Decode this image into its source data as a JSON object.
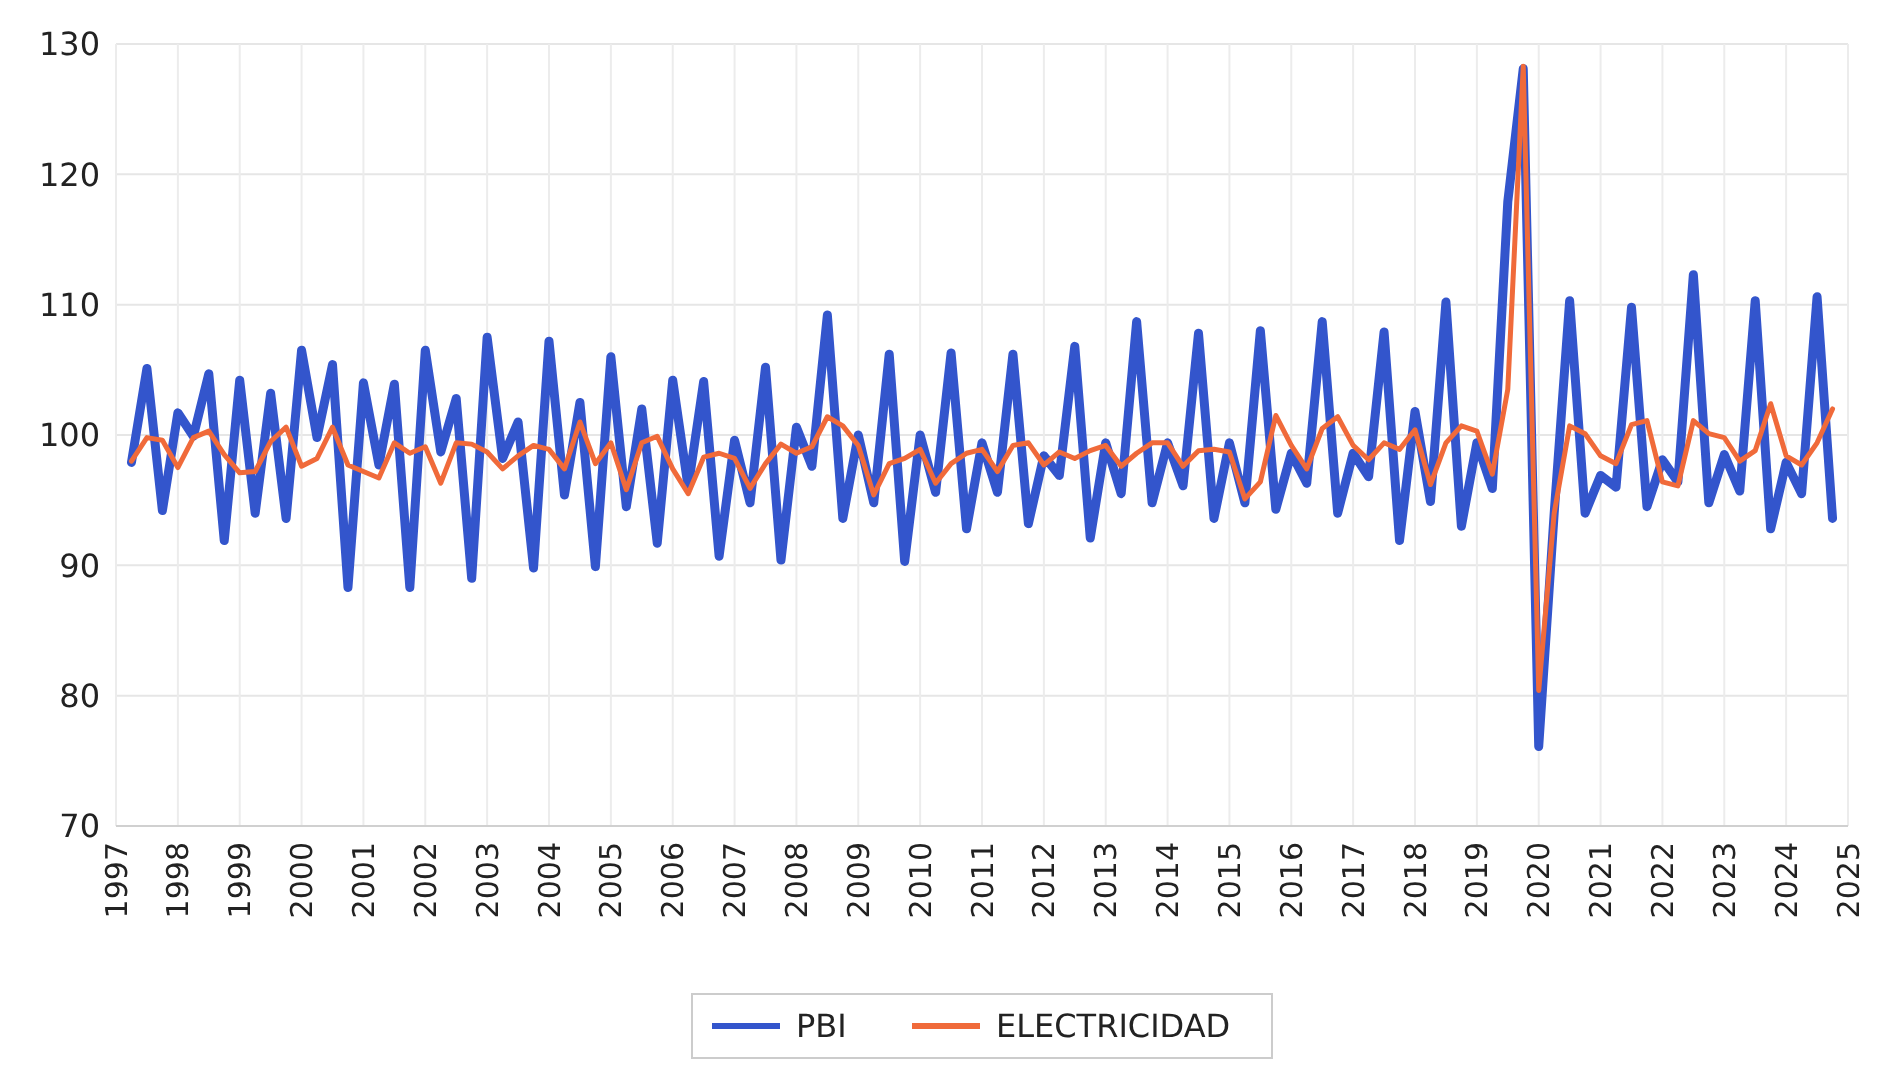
{
  "chart_data": {
    "type": "line",
    "xlim": [
      1997,
      2025
    ],
    "xticks": [
      1997,
      1998,
      1999,
      2000,
      2001,
      2002,
      2003,
      2004,
      2005,
      2006,
      2007,
      2008,
      2009,
      2010,
      2011,
      2012,
      2013,
      2014,
      2015,
      2016,
      2017,
      2018,
      2019,
      2020,
      2021,
      2022,
      2023,
      2024,
      2025
    ],
    "ylim": [
      70,
      130
    ],
    "yticks": [
      70,
      80,
      90,
      100,
      110,
      120,
      130
    ],
    "grid": true,
    "legend": "bottom",
    "marker": "none",
    "line_style": "solid",
    "x": [
      1997.25,
      1997.5,
      1997.75,
      1998,
      1998.25,
      1998.5,
      1998.75,
      1999,
      1999.25,
      1999.5,
      1999.75,
      2000,
      2000.25,
      2000.5,
      2000.75,
      2001,
      2001.25,
      2001.5,
      2001.75,
      2002,
      2002.25,
      2002.5,
      2002.75,
      2003,
      2003.25,
      2003.5,
      2003.75,
      2004,
      2004.25,
      2004.5,
      2004.75,
      2005,
      2005.25,
      2005.5,
      2005.75,
      2006,
      2006.25,
      2006.5,
      2006.75,
      2007,
      2007.25,
      2007.5,
      2007.75,
      2008,
      2008.25,
      2008.5,
      2008.75,
      2009,
      2009.25,
      2009.5,
      2009.75,
      2010,
      2010.25,
      2010.5,
      2010.75,
      2011,
      2011.25,
      2011.5,
      2011.75,
      2012,
      2012.25,
      2012.5,
      2012.75,
      2013,
      2013.25,
      2013.5,
      2013.75,
      2014,
      2014.25,
      2014.5,
      2014.75,
      2015,
      2015.25,
      2015.5,
      2015.75,
      2016,
      2016.25,
      2016.5,
      2016.75,
      2017,
      2017.25,
      2017.5,
      2017.75,
      2018,
      2018.25,
      2018.5,
      2018.75,
      2019,
      2019.25,
      2019.5,
      2019.75,
      2020,
      2020.25,
      2020.5,
      2020.75,
      2021,
      2021.25,
      2021.5,
      2021.75,
      2022,
      2022.25,
      2022.5,
      2022.75,
      2023,
      2023.25,
      2023.5,
      2023.75,
      2024,
      2024.25,
      2024.5,
      2024.75
    ],
    "series": [
      {
        "name": "PBI",
        "color": "#3355cc",
        "values": [
          97.9,
          105.1,
          94.2,
          101.7,
          99.9,
          104.7,
          91.9,
          104.2,
          94,
          103.2,
          93.6,
          106.5,
          99.8,
          105.4,
          88.3,
          104,
          97.7,
          103.9,
          88.3,
          106.5,
          98.7,
          102.8,
          89,
          107.5,
          98.2,
          101,
          89.8,
          107.2,
          95.4,
          102.5,
          89.9,
          106,
          94.5,
          102,
          91.7,
          104.2,
          96,
          104.1,
          90.7,
          99.6,
          94.8,
          105.2,
          90.4,
          100.6,
          97.6,
          109.2,
          93.6,
          100,
          94.8,
          106.2,
          90.3,
          100,
          95.6,
          106.3,
          92.8,
          99.4,
          95.6,
          106.2,
          93.2,
          98.4,
          96.9,
          106.8,
          92.1,
          99.4,
          95.5,
          108.7,
          94.8,
          99.4,
          96.1,
          107.8,
          93.6,
          99.4,
          94.8,
          108,
          94.3,
          98.6,
          96.3,
          108.7,
          94,
          98.6,
          96.8,
          107.9,
          91.9,
          101.8,
          94.9,
          110.2,
          93,
          99.4,
          95.9,
          117.9,
          128.1,
          76.1,
          94,
          110.3,
          94,
          96.9,
          96,
          109.8,
          94.5,
          98.1,
          96.4,
          112.3,
          94.8,
          98.5,
          95.7,
          110.3,
          92.8,
          97.9,
          95.5,
          110.6,
          93.6
        ]
      },
      {
        "name": "ELECTRICIDAD",
        "color": "#f06a3a",
        "values": [
          98,
          99.8,
          99.6,
          97.5,
          99.8,
          100.3,
          98.5,
          97.1,
          97.2,
          99.5,
          100.6,
          97.6,
          98.2,
          100.6,
          97.7,
          97.2,
          96.7,
          99.4,
          98.6,
          99.1,
          96.3,
          99.4,
          99.3,
          98.7,
          97.4,
          98.4,
          99.2,
          98.9,
          97.4,
          101,
          97.8,
          99.4,
          95.8,
          99.4,
          99.9,
          97.4,
          95.5,
          98.3,
          98.6,
          98.2,
          95.9,
          97.8,
          99.3,
          98.6,
          99.1,
          101.4,
          100.7,
          99.2,
          95.4,
          97.8,
          98.2,
          98.9,
          96.3,
          97.8,
          98.6,
          98.9,
          97.2,
          99.2,
          99.4,
          97.7,
          98.7,
          98.2,
          98.8,
          99.2,
          97.6,
          98.6,
          99.4,
          99.4,
          97.6,
          98.8,
          98.9,
          98.7,
          95.1,
          96.4,
          101.5,
          99.2,
          97.4,
          100.5,
          101.4,
          99.2,
          98.1,
          99.4,
          98.9,
          100.4,
          96.2,
          99.4,
          100.7,
          100.3,
          97,
          103.5,
          128.3,
          80.4,
          94,
          100.7,
          100.1,
          98.4,
          97.8,
          100.8,
          101.1,
          96.4,
          96.1,
          101.1,
          100.1,
          99.8,
          98,
          98.8,
          102.4,
          98.4,
          97.7,
          99.4,
          102
        ]
      }
    ]
  }
}
